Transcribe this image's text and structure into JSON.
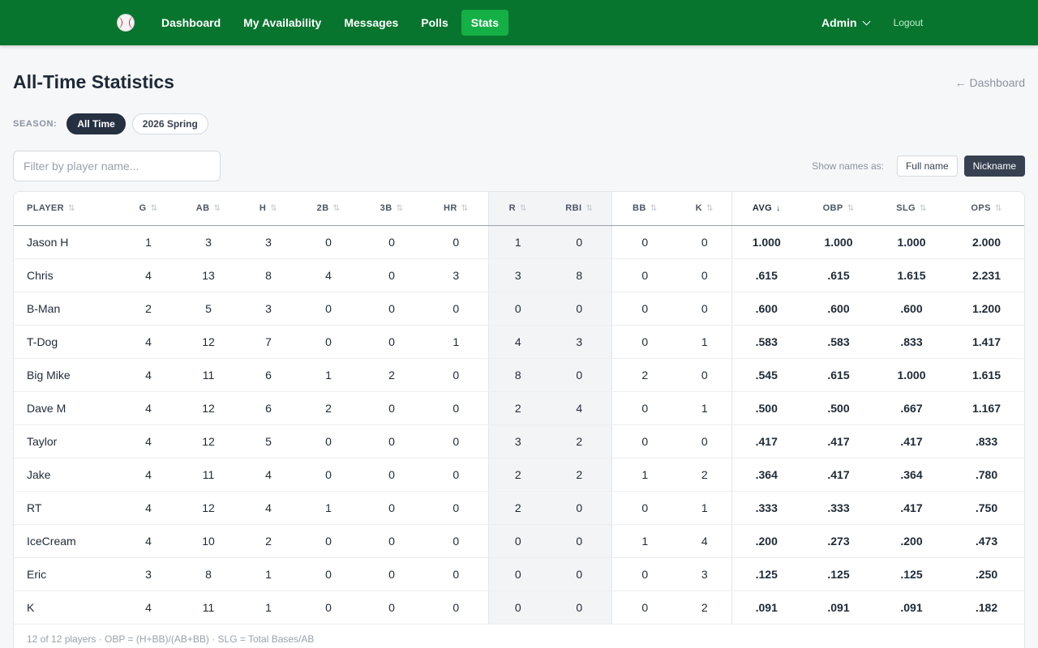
{
  "nav": {
    "links": [
      "Dashboard",
      "My Availability",
      "Messages",
      "Polls",
      "Stats"
    ],
    "active_index": 4,
    "admin": "Admin",
    "logout": "Logout",
    "logo_icon": "baseball-icon"
  },
  "header": {
    "title": "All-Time Statistics",
    "back": "← Dashboard"
  },
  "season": {
    "label": "SEASON:",
    "options": [
      "All Time",
      "2026 Spring"
    ],
    "active_index": 0
  },
  "filter": {
    "placeholder": "Filter by player name...",
    "value": ""
  },
  "names": {
    "label": "Show names as:",
    "options": [
      "Full name",
      "Nickname"
    ],
    "active_index": 1
  },
  "table": {
    "columns": [
      "PLAYER",
      "G",
      "AB",
      "H",
      "2B",
      "3B",
      "HR",
      "R",
      "RBI",
      "BB",
      "K",
      "AVG",
      "OBP",
      "SLG",
      "OPS"
    ],
    "sorted_column": "AVG",
    "sort_glyph": "⇅",
    "sorted_glyph": "↓",
    "rows": [
      [
        "Jason H",
        "1",
        "3",
        "3",
        "0",
        "0",
        "0",
        "1",
        "0",
        "0",
        "0",
        "1.000",
        "1.000",
        "1.000",
        "2.000"
      ],
      [
        "Chris",
        "4",
        "13",
        "8",
        "4",
        "0",
        "3",
        "3",
        "8",
        "0",
        "0",
        ".615",
        ".615",
        "1.615",
        "2.231"
      ],
      [
        "B-Man",
        "2",
        "5",
        "3",
        "0",
        "0",
        "0",
        "0",
        "0",
        "0",
        "0",
        ".600",
        ".600",
        ".600",
        "1.200"
      ],
      [
        "T-Dog",
        "4",
        "12",
        "7",
        "0",
        "0",
        "1",
        "4",
        "3",
        "0",
        "1",
        ".583",
        ".583",
        ".833",
        "1.417"
      ],
      [
        "Big Mike",
        "4",
        "11",
        "6",
        "1",
        "2",
        "0",
        "8",
        "0",
        "2",
        "0",
        ".545",
        ".615",
        "1.000",
        "1.615"
      ],
      [
        "Dave M",
        "4",
        "12",
        "6",
        "2",
        "0",
        "0",
        "2",
        "4",
        "0",
        "1",
        ".500",
        ".500",
        ".667",
        "1.167"
      ],
      [
        "Taylor",
        "4",
        "12",
        "5",
        "0",
        "0",
        "0",
        "3",
        "2",
        "0",
        "0",
        ".417",
        ".417",
        ".417",
        ".833"
      ],
      [
        "Jake",
        "4",
        "11",
        "4",
        "0",
        "0",
        "0",
        "2",
        "2",
        "1",
        "2",
        ".364",
        ".417",
        ".364",
        ".780"
      ],
      [
        "RT",
        "4",
        "12",
        "4",
        "1",
        "0",
        "0",
        "2",
        "0",
        "0",
        "1",
        ".333",
        ".333",
        ".417",
        ".750"
      ],
      [
        "IceCream",
        "4",
        "10",
        "2",
        "0",
        "0",
        "0",
        "0",
        "0",
        "1",
        "4",
        ".200",
        ".273",
        ".200",
        ".473"
      ],
      [
        "Eric",
        "3",
        "8",
        "1",
        "0",
        "0",
        "0",
        "0",
        "0",
        "0",
        "3",
        ".125",
        ".125",
        ".125",
        ".250"
      ],
      [
        "K",
        "4",
        "11",
        "1",
        "0",
        "0",
        "0",
        "0",
        "0",
        "0",
        "2",
        ".091",
        ".091",
        ".091",
        ".182"
      ]
    ]
  },
  "footer": "12 of 12 players · OBP = (H+BB)/(AB+BB) · SLG = Total Bases/AB",
  "colors": {
    "nav_bg": "#08752e",
    "nav_active": "#14b046",
    "pill_active": "#253041"
  }
}
